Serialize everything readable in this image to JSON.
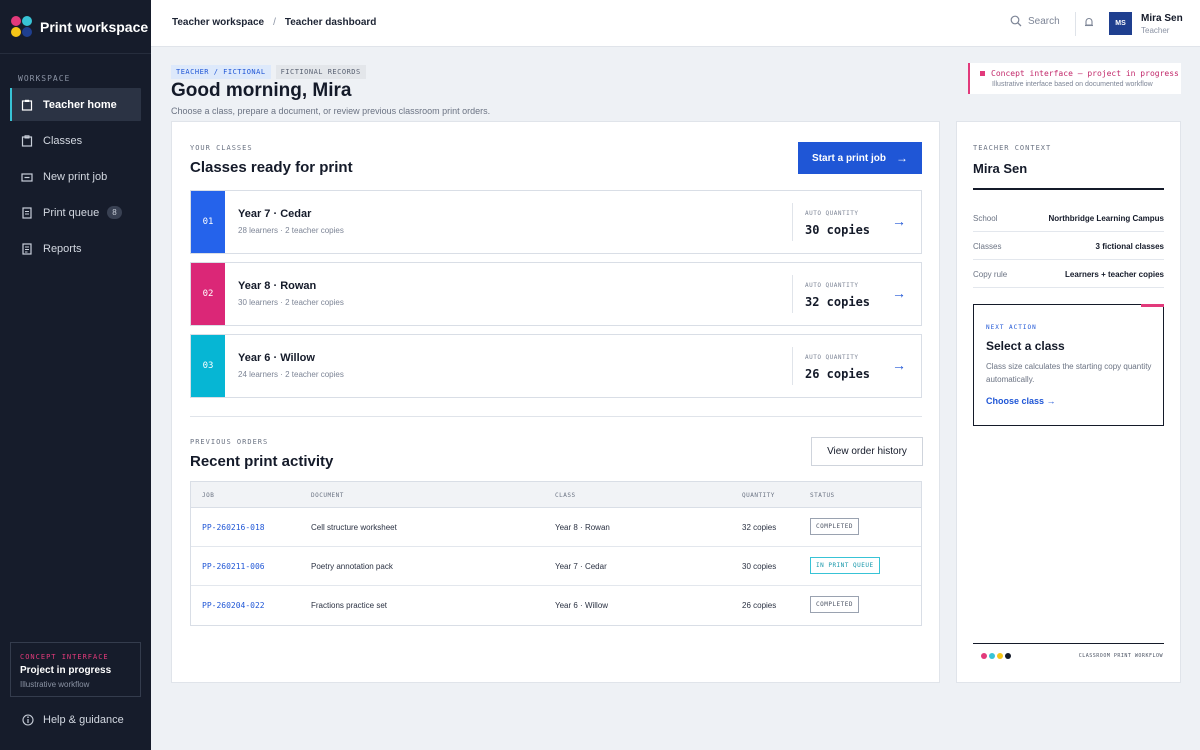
{
  "sidebar": {
    "brand": "Print workspace",
    "section_label": "WORKSPACE",
    "items": [
      {
        "label": "Teacher home",
        "icon": "home-icon",
        "active": true
      },
      {
        "label": "Classes",
        "icon": "clipboard-icon"
      },
      {
        "label": "New print job",
        "icon": "printer-icon"
      },
      {
        "label": "Print queue",
        "icon": "document-icon",
        "badge": "8"
      },
      {
        "label": "Reports",
        "icon": "report-icon"
      }
    ],
    "concept": {
      "kicker": "CONCEPT INTERFACE",
      "title": "Project in progress",
      "subtitle": "Illustrative workflow"
    },
    "help_label": "Help & guidance"
  },
  "topbar": {
    "breadcrumb": [
      "Teacher workspace",
      "Teacher dashboard"
    ],
    "search_label": "Search",
    "user": {
      "initials": "MS",
      "name": "Mira Sen",
      "role": "Teacher"
    }
  },
  "header": {
    "tags": [
      "TEACHER / FICTIONAL",
      "FICTIONAL RECORDS"
    ],
    "greeting": "Good morning, Mira",
    "subtitle": "Choose a class, prepare a document, or review previous classroom print orders.",
    "note_title": "Concept interface — project in progress",
    "note_subtitle": "Illustrative interface based on documented workflow"
  },
  "classes": {
    "kicker": "YOUR CLASSES",
    "title": "Classes ready for print",
    "start_button": "Start a print job",
    "quantity_label": "AUTO QUANTITY",
    "rows": [
      {
        "num": "01",
        "name": "Year 7 · Cedar",
        "meta": "28 learners · 2 teacher copies",
        "copies": "30 copies",
        "color": "#2563eb"
      },
      {
        "num": "02",
        "name": "Year 8 · Rowan",
        "meta": "30 learners · 2 teacher copies",
        "copies": "32 copies",
        "color": "#db2777"
      },
      {
        "num": "03",
        "name": "Year 6 · Willow",
        "meta": "24 learners · 2 teacher copies",
        "copies": "26 copies",
        "color": "#06b6d4"
      }
    ]
  },
  "orders": {
    "kicker": "PREVIOUS ORDERS",
    "title": "Recent print activity",
    "history_button": "View order history",
    "columns": [
      "JOB",
      "DOCUMENT",
      "CLASS",
      "QUANTITY",
      "STATUS"
    ],
    "rows": [
      {
        "job": "PP-260216-018",
        "document": "Cell structure worksheet",
        "class": "Year 8 · Rowan",
        "quantity": "32 copies",
        "status": "COMPLETED"
      },
      {
        "job": "PP-260211-006",
        "document": "Poetry annotation pack",
        "class": "Year 7 · Cedar",
        "quantity": "30 copies",
        "status": "IN PRINT QUEUE"
      },
      {
        "job": "PP-260204-022",
        "document": "Fractions practice set",
        "class": "Year 6 · Willow",
        "quantity": "26 copies",
        "status": "COMPLETED"
      }
    ]
  },
  "context": {
    "kicker": "TEACHER CONTEXT",
    "name": "Mira Sen",
    "rows": [
      {
        "key": "School",
        "value": "Northbridge Learning Campus"
      },
      {
        "key": "Classes",
        "value": "3 fictional classes"
      },
      {
        "key": "Copy rule",
        "value": "Learners + teacher copies"
      }
    ],
    "next": {
      "kicker": "NEXT ACTION",
      "title": "Select a class",
      "text": "Class size calculates the starting copy quantity automatically.",
      "link": "Choose class →"
    },
    "footer_label": "CLASSROOM PRINT WORKFLOW"
  },
  "colors": {
    "accent_blue": "#1f56d6",
    "accent_pink": "#e23a7b",
    "accent_cyan": "#38c3d6",
    "logo": [
      "#e23a7b",
      "#38c3d6",
      "#f5c518",
      "#1f3f8f"
    ],
    "footer_dots": [
      "#e23a7b",
      "#38c3d6",
      "#f5c518",
      "#141a29"
    ]
  }
}
